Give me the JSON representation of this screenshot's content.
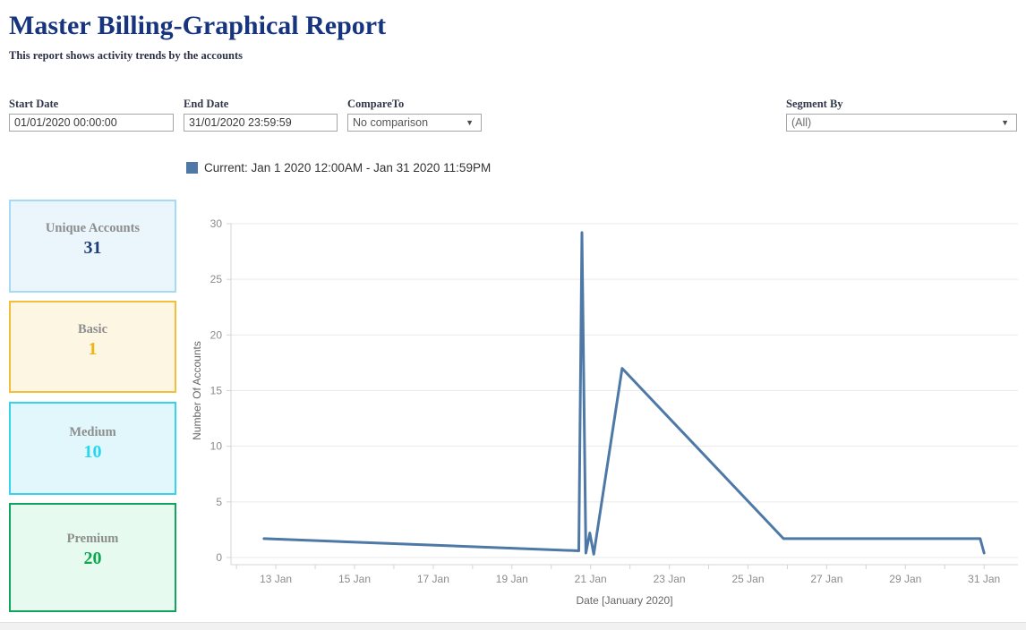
{
  "header": {
    "title": "Master Billing-Graphical Report",
    "subtitle": "This report shows activity trends by the accounts"
  },
  "filters": {
    "start_date": {
      "label": "Start Date",
      "value": "01/01/2020 00:00:00"
    },
    "end_date": {
      "label": "End Date",
      "value": "31/01/2020 23:59:59"
    },
    "compare_to": {
      "label": "CompareTo",
      "value": "No comparison"
    },
    "segment_by": {
      "label": "Segment By",
      "value": "(All)"
    }
  },
  "legend": {
    "label": "Current: Jan 1 2020 12:00AM - Jan 31 2020 11:59PM",
    "swatch_color": "#4e79a7"
  },
  "cards": [
    {
      "label": "Unique Accounts",
      "value": "31",
      "value_color": "#1e3d7b",
      "bg": "#eaf5fc",
      "border": "#a6d9f4"
    },
    {
      "label": "Basic",
      "value": "1",
      "value_color": "#f0b310",
      "bg": "#fcf6e3",
      "border": "#f3bf3a"
    },
    {
      "label": "Medium",
      "value": "10",
      "value_color": "#27d7f2",
      "bg": "#e1f7fc",
      "border": "#36d3ee"
    },
    {
      "label": "Premium",
      "value": "20",
      "value_color": "#0aa84f",
      "bg": "#e7faef",
      "border": "#12a45c"
    }
  ],
  "chart_data": {
    "type": "line",
    "title": "Current: Jan 1 2020 12:00AM - Jan 31 2020 11:59PM",
    "xlabel": "Date [January 2020]",
    "ylabel": "Number Of Accounts",
    "line_color": "#4e79a7",
    "grid": true,
    "legend_position": "top",
    "ylim": [
      0,
      30
    ],
    "y_ticks": [
      0,
      5,
      10,
      15,
      20,
      25,
      30
    ],
    "xlim_days": [
      11.86,
      31.86
    ],
    "x_ticks": [
      {
        "day": 13,
        "label": "13 Jan"
      },
      {
        "day": 15,
        "label": "15 Jan"
      },
      {
        "day": 17,
        "label": "17 Jan"
      },
      {
        "day": 19,
        "label": "19 Jan"
      },
      {
        "day": 21,
        "label": "21 Jan"
      },
      {
        "day": 23,
        "label": "23 Jan"
      },
      {
        "day": 25,
        "label": "25 Jan"
      },
      {
        "day": 27,
        "label": "27 Jan"
      },
      {
        "day": 29,
        "label": "29 Jan"
      },
      {
        "day": 31,
        "label": "31 Jan"
      }
    ],
    "series": [
      {
        "name": "Current: Jan 1 2020 12:00AM - Jan 31 2020 11:59PM",
        "points": [
          [
            12.7,
            1.7
          ],
          [
            20.7,
            0.6
          ],
          [
            20.78,
            29.2
          ],
          [
            20.88,
            0.4
          ],
          [
            20.98,
            2.2
          ],
          [
            21.08,
            0.3
          ],
          [
            21.8,
            17
          ],
          [
            25.9,
            1.7
          ],
          [
            30.9,
            1.7
          ],
          [
            31.0,
            0.4
          ]
        ]
      }
    ]
  }
}
